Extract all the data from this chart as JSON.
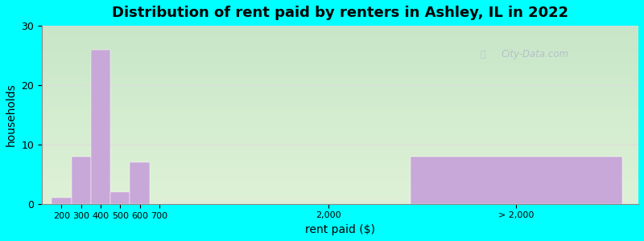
{
  "title": "Distribution of rent paid by renters in Ashley, IL in 2022",
  "xlabel": "rent paid ($)",
  "ylabel": "households",
  "background_outer": "#00FFFF",
  "background_inner": "#e8f5e2",
  "bar_color": "#c8a8d8",
  "ylim": [
    0,
    30
  ],
  "yticks": [
    0,
    10,
    20,
    30
  ],
  "bar_values": [
    1,
    8,
    26,
    2,
    7,
    0,
    8
  ],
  "bar_labels_x": [
    "200",
    "300",
    "400",
    "500",
    "600",
    "700",
    "2,000",
    "> 2,000"
  ],
  "watermark_text": "City-Data.com",
  "grid_color": "#dddddd",
  "title_fontsize": 13,
  "axis_label_fontsize": 10,
  "xlim": [
    -0.3,
    18
  ],
  "x_small_bars": [
    0,
    0.6,
    1.2,
    1.8,
    2.4,
    3.0
  ],
  "x_small_bar_width": 0.6,
  "x_tick_small": [
    0,
    0.6,
    1.2,
    1.8,
    2.4,
    3.0
  ],
  "x_tick_2000": 8.5,
  "x_last_bar_start": 11.0,
  "x_last_bar_width": 6.5,
  "x_tick_last": 14.25
}
